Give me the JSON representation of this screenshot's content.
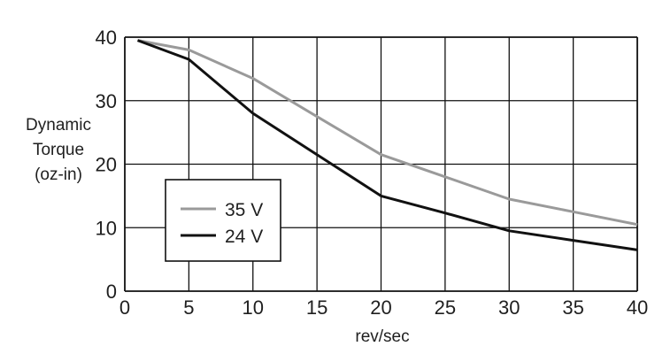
{
  "chart_data": {
    "type": "line",
    "title": "",
    "xlabel": "rev/sec",
    "ylabel_lines": [
      "Dynamic",
      "Torque",
      "(oz-in)"
    ],
    "xlim": [
      0,
      40
    ],
    "ylim": [
      0,
      40
    ],
    "xticks": [
      0,
      5,
      10,
      15,
      20,
      25,
      30,
      35,
      40
    ],
    "yticks": [
      0,
      10,
      20,
      30,
      40
    ],
    "grid": true,
    "legend_position": "lower-left",
    "series": [
      {
        "name": "35 V",
        "color": "#9a9a9a",
        "x": [
          1,
          5,
          10,
          15,
          20,
          25,
          30,
          35,
          40
        ],
        "y": [
          39.5,
          38,
          33.5,
          27.5,
          21.5,
          18,
          14.5,
          12.5,
          10.5
        ]
      },
      {
        "name": "24 V",
        "color": "#111111",
        "x": [
          1,
          5,
          10,
          15,
          20,
          25,
          30,
          35,
          40
        ],
        "y": [
          39.5,
          36.5,
          28,
          21.5,
          15,
          12.3,
          9.5,
          8,
          6.5
        ]
      }
    ]
  }
}
